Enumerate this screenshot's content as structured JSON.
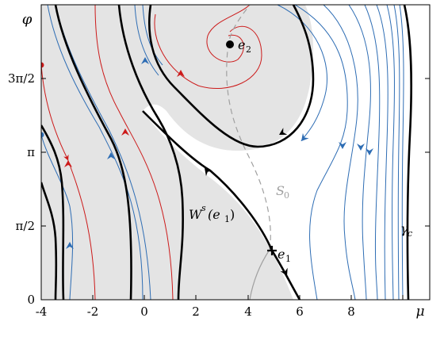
{
  "figure": {
    "x_axis": {
      "label": "μ",
      "range": [
        -4,
        10.2
      ],
      "ticks": [
        {
          "value": -4,
          "label": "-4"
        },
        {
          "value": -2,
          "label": "-2"
        },
        {
          "value": 0,
          "label": "0"
        },
        {
          "value": 2,
          "label": "2"
        },
        {
          "value": 4,
          "label": "4"
        },
        {
          "value": 6,
          "label": "6"
        },
        {
          "value": 8,
          "label": "8"
        }
      ]
    },
    "y_axis": {
      "label": "φ",
      "range": [
        0,
        7.0
      ],
      "ticks": [
        {
          "value": 0,
          "label": "0"
        },
        {
          "value": 1.5708,
          "label": "π/2"
        },
        {
          "value": 3.1416,
          "label": "π"
        },
        {
          "value": 4.7124,
          "label": "3π/2"
        }
      ]
    },
    "annotations": {
      "e1": "e",
      "e1_sub": "1",
      "e2": "e",
      "e2_sub": "2",
      "ws_main": "W",
      "ws_sup": "s",
      "ws_arg": "(e",
      "ws_arg_sub": "1",
      "ws_close": ")",
      "s0_main": "S",
      "s0_sub": "0",
      "gamma_main": "γ",
      "gamma_sub": "c"
    },
    "colors": {
      "basin_fill": "#e4e4e4",
      "separatrix": "#000000",
      "blue_orbit": "#2e6db4",
      "red_orbit": "#cc1a1a",
      "s0_curve": "#a0a0a0"
    },
    "points": {
      "e1": {
        "mu": 4.85,
        "phi": 1.1
      },
      "e2": {
        "mu": 3.3,
        "phi": 5.75
      }
    }
  }
}
